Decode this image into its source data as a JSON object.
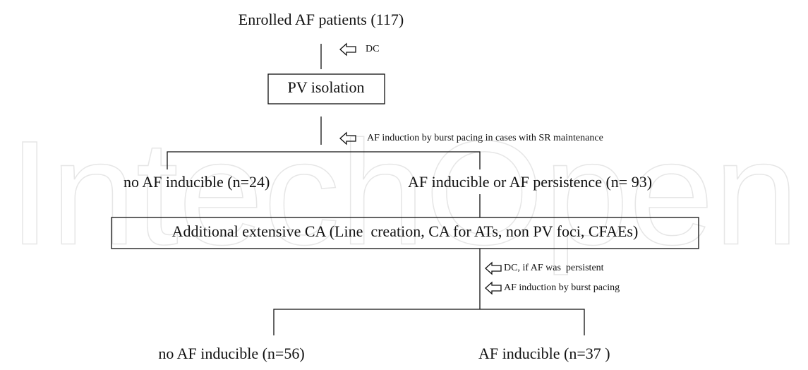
{
  "watermark": "IntechOpen",
  "nodes": [
    {
      "label": "Enrolled AF patients (117)"
    },
    {
      "label": "PV isolation"
    },
    {
      "label": "no AF inducible (n=24)"
    },
    {
      "label": "AF inducible or AF persistence (n= 93)"
    },
    {
      "label": "Additional extensive CA (Line  creation, CA for ATs, non PV foci, CFAEs)"
    },
    {
      "label": "no AF inducible (n=56)"
    },
    {
      "label": "AF inducible (n=37 )"
    }
  ],
  "annotations": [
    {
      "label": "DC"
    },
    {
      "label": "AF induction by burst pacing in cases with SR maintenance"
    },
    {
      "label": "DC, if AF was  persistent"
    },
    {
      "label": "AF induction by burst pacing"
    }
  ]
}
